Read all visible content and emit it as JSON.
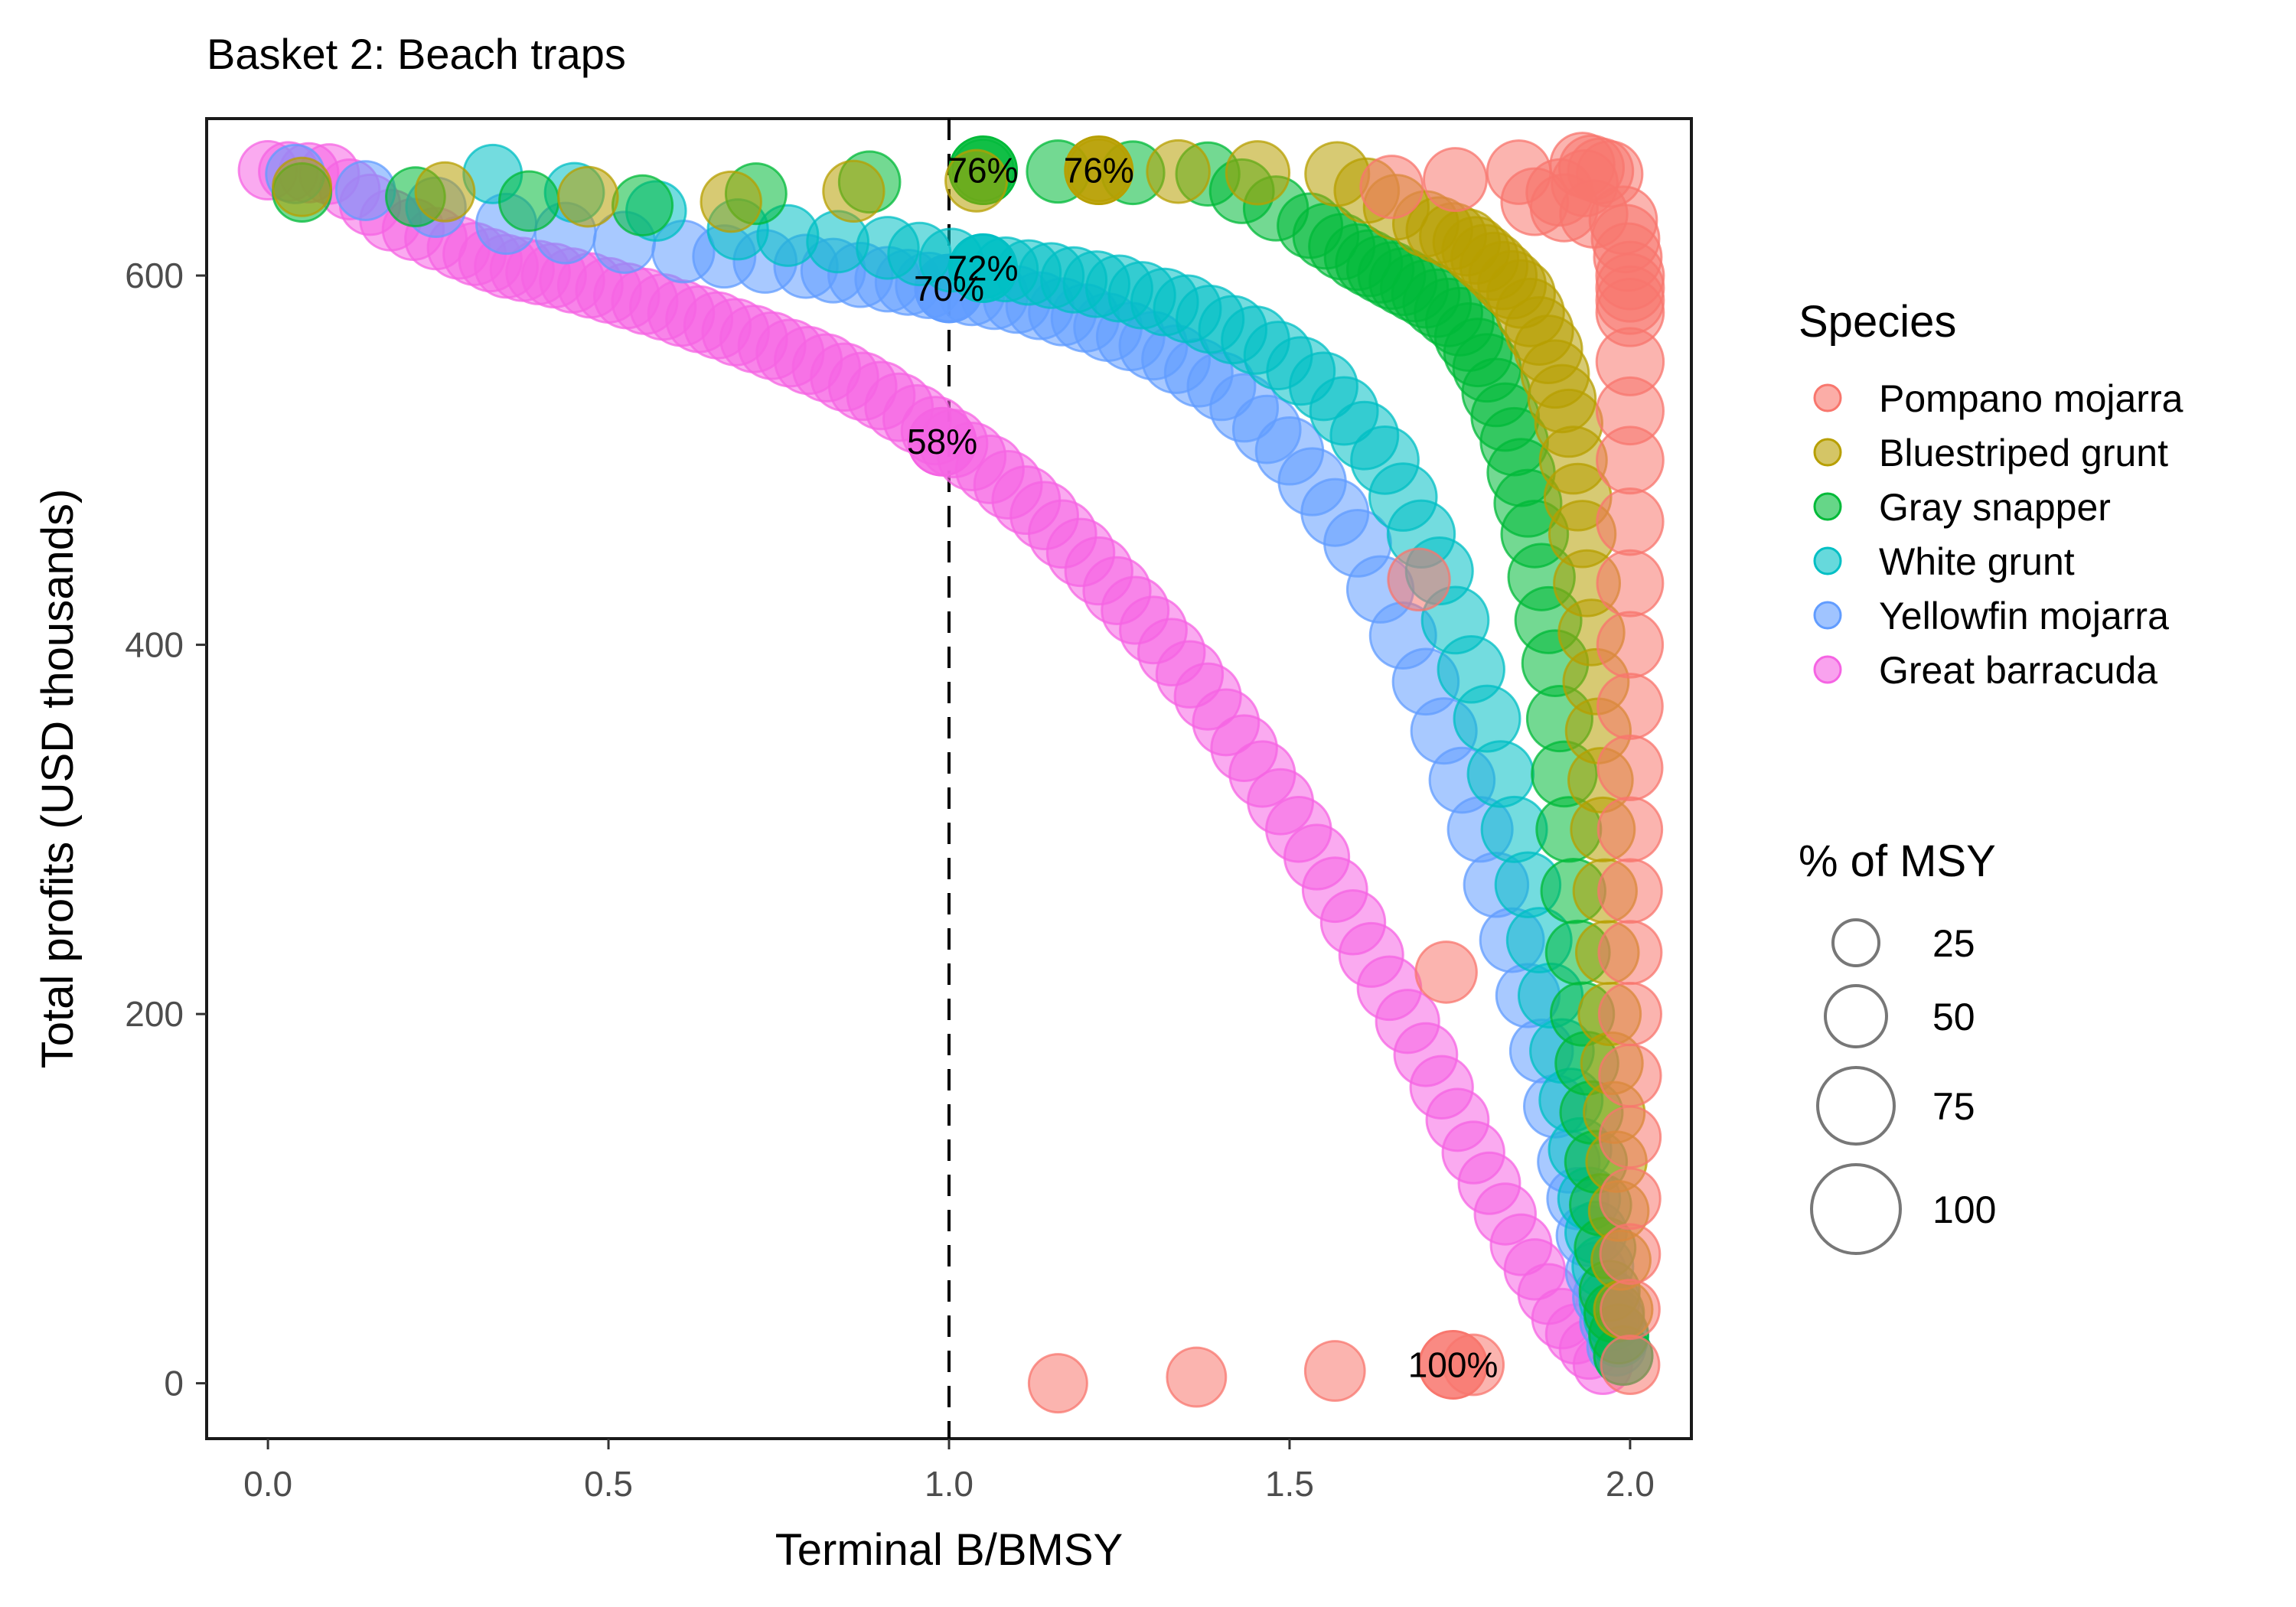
{
  "chart_data": {
    "type": "scatter",
    "title": "Basket 2: Beach traps",
    "xlabel": "Terminal B/BMSY",
    "ylabel": "Total profits (USD thousands)",
    "xlim": [
      -0.09,
      2.09
    ],
    "ylim": [
      -30,
      685
    ],
    "x_ticks": [
      0.0,
      0.5,
      1.0,
      1.5,
      2.0
    ],
    "x_tick_labels": [
      "0.0",
      "0.5",
      "1.0",
      "1.5",
      "2.0"
    ],
    "y_ticks": [
      0,
      200,
      400,
      600
    ],
    "y_tick_labels": [
      "0",
      "200",
      "400",
      "600"
    ],
    "reference_line": {
      "x": 1.0,
      "style": "dashed"
    },
    "grid": false,
    "point_alpha": 0.55,
    "series": [
      {
        "name": "Pompano mojarra",
        "color": "#F8766D",
        "points": [
          [
            1.16,
            0
          ],
          [
            1.77,
            10
          ],
          [
            1.65,
            648
          ],
          [
            1.93,
            660
          ],
          [
            1.97,
            655
          ],
          [
            1.86,
            640
          ],
          [
            1.99,
            630
          ],
          [
            2.0,
            600
          ],
          [
            2.0,
            580
          ],
          [
            2.0,
            500
          ],
          [
            2.0,
            400
          ],
          [
            2.0,
            300
          ],
          [
            2.0,
            200
          ],
          [
            2.0,
            100
          ],
          [
            2.0,
            10
          ]
        ],
        "highlight": {
          "x": 1.74,
          "y": 10,
          "label": "100%"
        }
      },
      {
        "name": "Bluestriped grunt",
        "color": "#B79F00",
        "points": [
          [
            0.05,
            648
          ],
          [
            0.68,
            640
          ],
          [
            1.22,
            657
          ],
          [
            1.57,
            655
          ],
          [
            1.7,
            628
          ],
          [
            1.76,
            618
          ],
          [
            1.8,
            605
          ],
          [
            1.84,
            590
          ],
          [
            1.88,
            560
          ],
          [
            1.91,
            520
          ],
          [
            1.93,
            460
          ],
          [
            1.95,
            380
          ],
          [
            1.96,
            300
          ],
          [
            1.97,
            200
          ],
          [
            1.98,
            120
          ],
          [
            1.99,
            40
          ]
        ],
        "highlight": {
          "x": 1.22,
          "y": 657,
          "label": "76%"
        }
      },
      {
        "name": "Gray snapper",
        "color": "#00BA38",
        "points": [
          [
            0.05,
            645
          ],
          [
            0.55,
            638
          ],
          [
            1.05,
            657
          ],
          [
            1.38,
            655
          ],
          [
            1.53,
            627
          ],
          [
            1.6,
            610
          ],
          [
            1.65,
            600
          ],
          [
            1.7,
            590
          ],
          [
            1.75,
            575
          ],
          [
            1.79,
            550
          ],
          [
            1.83,
            510
          ],
          [
            1.86,
            460
          ],
          [
            1.89,
            390
          ],
          [
            1.91,
            300
          ],
          [
            1.93,
            200
          ],
          [
            1.95,
            120
          ],
          [
            1.97,
            50
          ],
          [
            1.99,
            15
          ]
        ],
        "highlight": {
          "x": 1.05,
          "y": 657,
          "label": "76%"
        }
      },
      {
        "name": "White grunt",
        "color": "#00BFC4",
        "points": [
          [
            0.33,
            655
          ],
          [
            0.69,
            625
          ],
          [
            0.91,
            615
          ],
          [
            1.05,
            605
          ],
          [
            1.15,
            600
          ],
          [
            1.25,
            593
          ],
          [
            1.35,
            582
          ],
          [
            1.45,
            565
          ],
          [
            1.55,
            540
          ],
          [
            1.64,
            500
          ],
          [
            1.72,
            440
          ],
          [
            1.79,
            360
          ],
          [
            1.85,
            270
          ],
          [
            1.9,
            180
          ],
          [
            1.94,
            100
          ],
          [
            1.97,
            45
          ],
          [
            1.99,
            15
          ]
        ],
        "highlight": {
          "x": 1.05,
          "y": 604,
          "label": "72%"
        }
      },
      {
        "name": "Yellowfin mojarra",
        "color": "#619CFF",
        "points": [
          [
            0.04,
            655
          ],
          [
            0.35,
            628
          ],
          [
            0.61,
            613
          ],
          [
            0.79,
            605
          ],
          [
            0.91,
            598
          ],
          [
            1.0,
            593
          ],
          [
            1.1,
            587
          ],
          [
            1.2,
            577
          ],
          [
            1.3,
            562
          ],
          [
            1.4,
            540
          ],
          [
            1.5,
            505
          ],
          [
            1.6,
            455
          ],
          [
            1.7,
            380
          ],
          [
            1.78,
            300
          ],
          [
            1.85,
            210
          ],
          [
            1.91,
            120
          ],
          [
            1.95,
            60
          ],
          [
            1.98,
            20
          ]
        ],
        "highlight": {
          "x": 1.0,
          "y": 593,
          "label": "70%"
        }
      },
      {
        "name": "Great barracuda",
        "color": "#F564E3",
        "points": [
          [
            0.0,
            657
          ],
          [
            0.09,
            655
          ],
          [
            0.18,
            630
          ],
          [
            0.28,
            615
          ],
          [
            0.35,
            605
          ],
          [
            0.42,
            600
          ],
          [
            0.5,
            592
          ],
          [
            0.58,
            583
          ],
          [
            0.66,
            573
          ],
          [
            0.74,
            562
          ],
          [
            0.82,
            550
          ],
          [
            0.9,
            535
          ],
          [
            0.98,
            516
          ],
          [
            1.06,
            495
          ],
          [
            1.14,
            470
          ],
          [
            1.22,
            440
          ],
          [
            1.3,
            408
          ],
          [
            1.38,
            372
          ],
          [
            1.46,
            330
          ],
          [
            1.54,
            285
          ],
          [
            1.62,
            232
          ],
          [
            1.7,
            178
          ],
          [
            1.77,
            125
          ],
          [
            1.84,
            75
          ],
          [
            1.9,
            35
          ],
          [
            1.96,
            10
          ]
        ],
        "highlight": {
          "x": 0.99,
          "y": 510,
          "label": "58%"
        }
      }
    ],
    "legend": {
      "position": "right",
      "species_title": "Species",
      "species": [
        "Pompano mojarra",
        "Bluestriped grunt",
        "Gray snapper",
        "White grunt",
        "Yellowfin mojarra",
        "Great barracuda"
      ],
      "size_title": "% of MSY",
      "size_values": [
        25,
        50,
        75,
        100
      ]
    }
  }
}
